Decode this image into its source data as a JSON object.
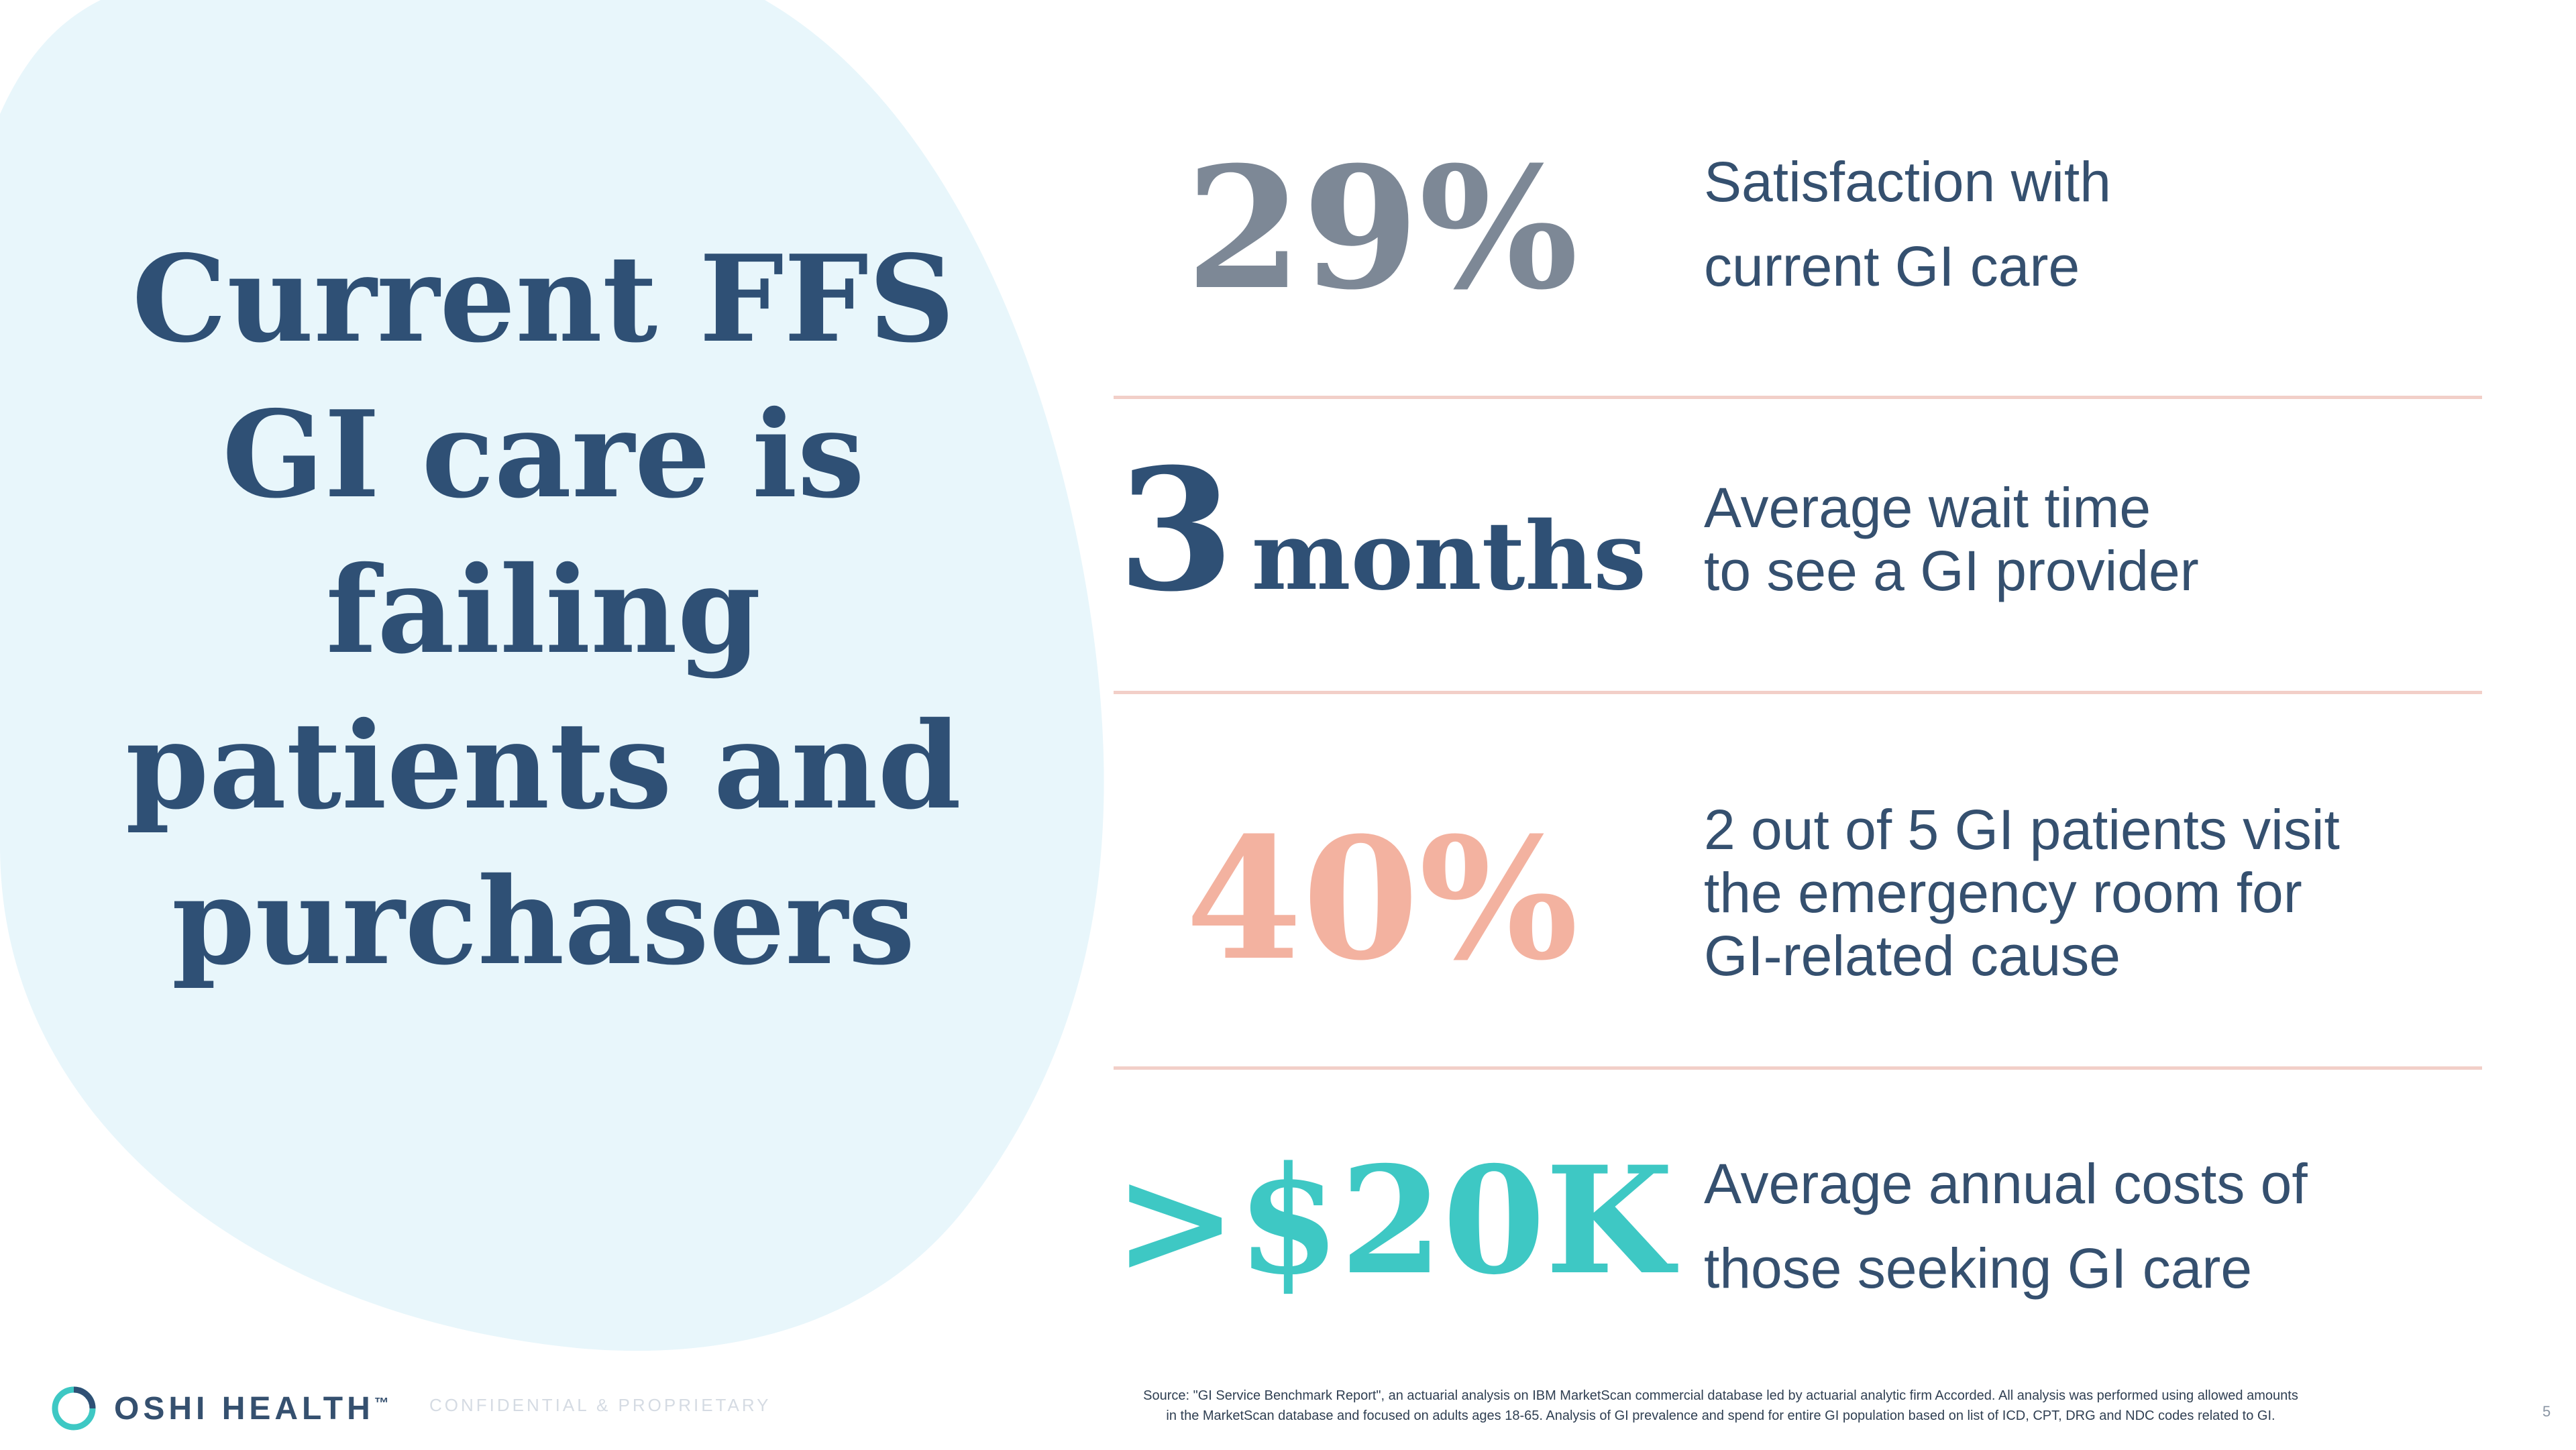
{
  "headline": {
    "lines": [
      "Current FFS",
      "GI care is",
      "failing",
      "patients and",
      "purchasers"
    ]
  },
  "stats": [
    {
      "value": "29%",
      "desc": [
        "Satisfaction with",
        "current GI care"
      ],
      "color": "#7d8896"
    },
    {
      "value_number": "3",
      "value_unit": "months",
      "desc": [
        "Average wait time",
        "to see a GI provider"
      ],
      "color": "#2f5075"
    },
    {
      "value": "40%",
      "desc": [
        "2 out of 5 GI patients visit",
        "the emergency room for",
        "GI-related cause"
      ],
      "color": "#f3b2a0"
    },
    {
      "value": ">$20K",
      "desc": [
        "Average annual costs of",
        "those seeking GI care"
      ],
      "color": "#3ec8c4"
    }
  ],
  "footer": {
    "brand": "OSHI HEALTH",
    "trademark": "™",
    "confidential": "CONFIDENTIAL & PROPRIETARY",
    "source_line1": "Source: \"GI Service Benchmark Report\", an actuarial analysis on IBM MarketScan commercial database led by actuarial analytic firm Accorded. All analysis was performed using allowed amounts",
    "source_line2": "in the MarketScan database and focused on adults ages 18-65. Analysis of GI prevalence and spend for entire GI population based on list of ICD, CPT, DRG and NDC codes related to GI.",
    "page_number": "5"
  },
  "colors": {
    "headline": "#2f5075",
    "blob": "#e8f6fb",
    "divider": "#f2cfc8",
    "logo_ring": "#3ec8c4"
  }
}
